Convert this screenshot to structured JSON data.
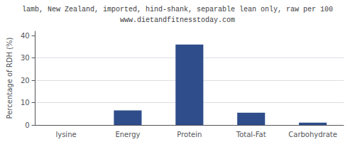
{
  "chart_data": {
    "type": "bar",
    "title": "lamb, New Zealand, imported, hind-shank, separable lean only, raw per 100",
    "subtitle": "www.dietandfitnesstoday.com",
    "categories": [
      "lysine",
      "Energy",
      "Protein",
      "Total-Fat",
      "Carbohydrate"
    ],
    "values": [
      0,
      6.5,
      36,
      5.5,
      1.0
    ],
    "color": "#2e4d8a",
    "ylabel": "Percentage of RDH (%)",
    "ylim": [
      0,
      42
    ],
    "yticks": [
      0,
      10,
      20,
      30,
      40
    ],
    "grid": true
  }
}
